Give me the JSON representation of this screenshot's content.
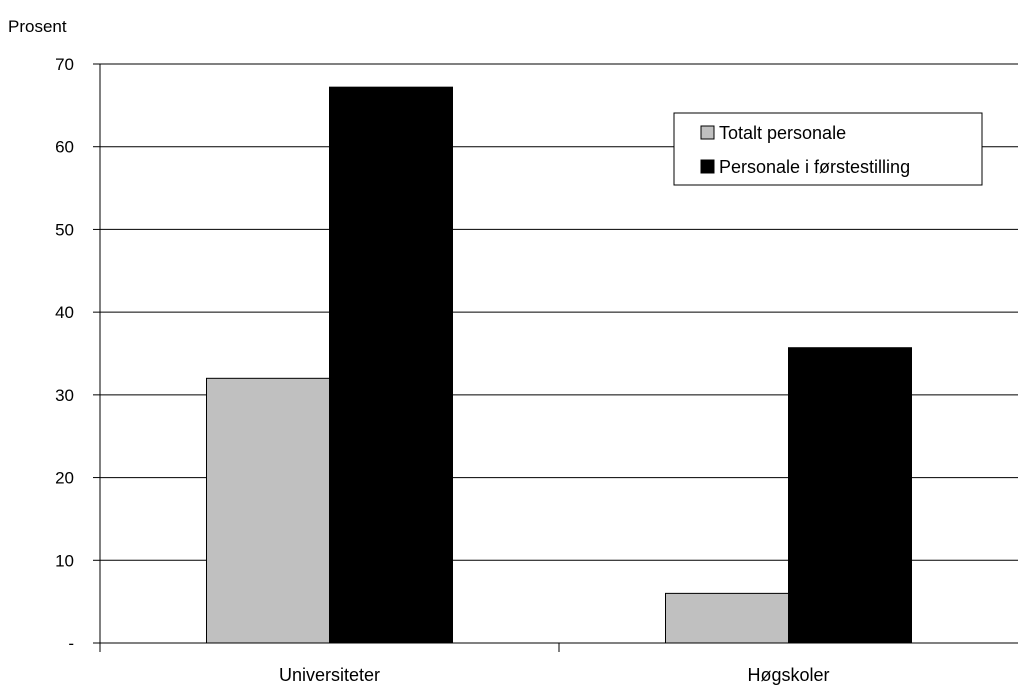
{
  "chart_data": {
    "type": "bar",
    "title": "",
    "xlabel": "",
    "ylabel": "Prosent",
    "categories": [
      "Universiteter",
      "Høgskoler"
    ],
    "series": [
      {
        "name": "Totalt personale",
        "values": [
          32,
          6
        ],
        "color": "#c0c0c0"
      },
      {
        "name": "Personale i førstestilling",
        "values": [
          67.2,
          35.7
        ],
        "color": "#000000"
      }
    ],
    "ylim": [
      0,
      70
    ],
    "yticks": [
      0,
      10,
      20,
      30,
      40,
      50,
      60,
      70
    ],
    "ytick_labels": [
      "-",
      "10",
      "20",
      "30",
      "40",
      "50",
      "60",
      "70"
    ],
    "grid": true,
    "legend_position": "top-right"
  }
}
